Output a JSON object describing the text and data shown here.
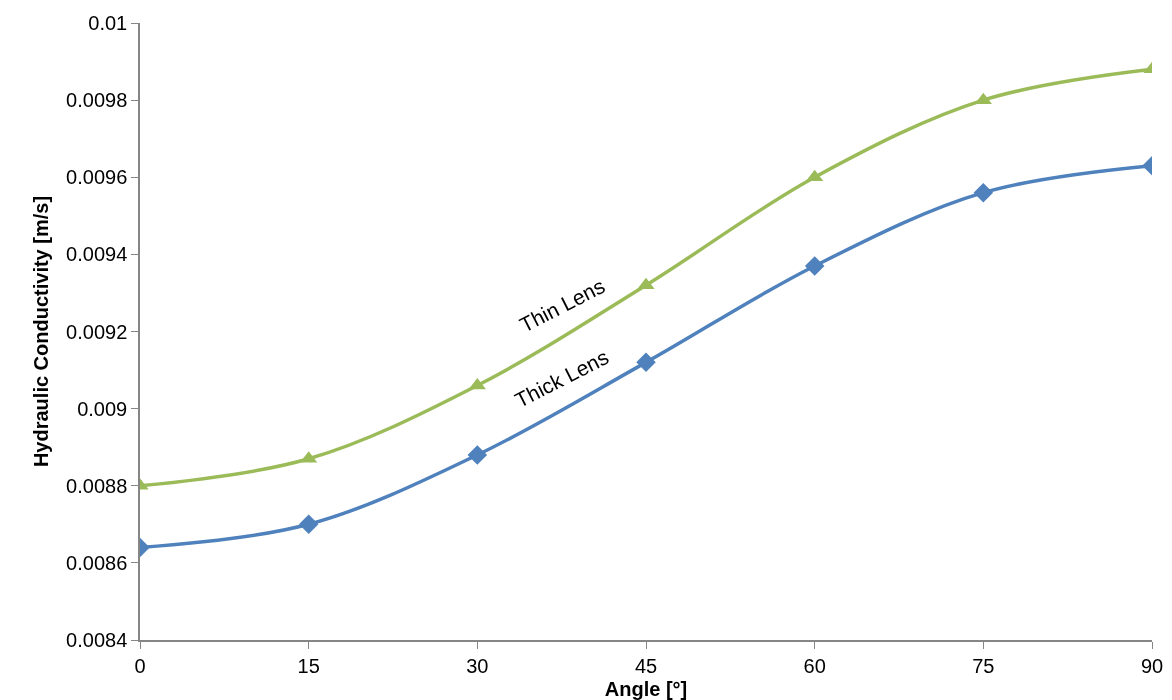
{
  "chart_data": {
    "type": "line",
    "xlabel": "Angle [°]",
    "ylabel": "Hydraulic Conductivity [m/s]",
    "x": [
      0,
      15,
      30,
      45,
      60,
      75,
      90
    ],
    "series": [
      {
        "name": "Thin Lens",
        "color": "#9bbb59",
        "marker": "triangle",
        "values": [
          0.0088,
          0.00887,
          0.00906,
          0.00932,
          0.0096,
          0.0098,
          0.00988
        ]
      },
      {
        "name": "Thick Lens",
        "color": "#4f81bd",
        "marker": "diamond",
        "values": [
          0.00864,
          0.0087,
          0.00888,
          0.00912,
          0.00937,
          0.00956,
          0.00963
        ]
      }
    ],
    "xlim": [
      0,
      90
    ],
    "xticks": [
      0,
      15,
      30,
      45,
      60,
      75,
      90
    ],
    "ylim": [
      0.0084,
      0.01
    ],
    "yticks": [
      0.0084,
      0.0086,
      0.0088,
      0.009,
      0.0092,
      0.0094,
      0.0096,
      0.0098,
      0.01
    ],
    "grid": false,
    "legend": false,
    "line_style": "solid"
  }
}
